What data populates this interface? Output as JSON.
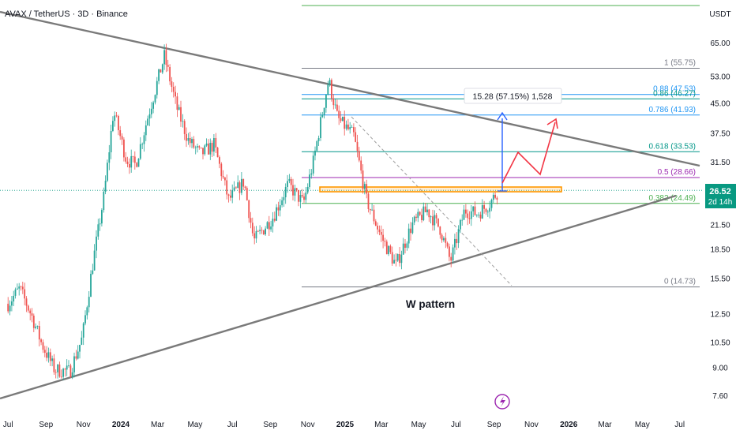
{
  "header": {
    "symbol_title": "AVAX / TetherUS · 3D · Binance",
    "currency": "USDT"
  },
  "colors": {
    "up": "#26a69a",
    "down": "#ef5350",
    "fib_green": "#4caf50",
    "fib_teal": "#009688",
    "fib_blue": "#2196f3",
    "fib_purple": "#9c27b0",
    "fib_gray": "#787b86",
    "orange_zone": "#ff9800",
    "trendline": "#787b86",
    "projection": "#f23645",
    "measure": "#2962ff",
    "price_tag": "#089981"
  },
  "chart_data": {
    "type": "candlestick",
    "price_scale": "log",
    "y_ticks": [
      "65.00",
      "53.00",
      "45.00",
      "37.50",
      "31.50",
      "26.52",
      "21.50",
      "18.50",
      "15.50",
      "12.50",
      "10.50",
      "9.00",
      "7.60"
    ],
    "x_ticks": [
      "Jul",
      "Sep",
      "Nov",
      "2024",
      "Mar",
      "May",
      "Jul",
      "Sep",
      "Nov",
      "2025",
      "Mar",
      "May",
      "Jul",
      "Sep",
      "Nov",
      "2026",
      "Mar",
      "May",
      "Jul"
    ],
    "bold_x_ticks": [
      "2024",
      "2025",
      "2026"
    ],
    "price_path": [
      [
        "2023-07-01",
        13.3
      ],
      [
        "2023-07-20",
        14.6
      ],
      [
        "2023-08-10",
        12.2
      ],
      [
        "2023-08-25",
        10.4
      ],
      [
        "2023-09-15",
        8.9
      ],
      [
        "2023-10-10",
        8.8
      ],
      [
        "2023-10-30",
        10.8
      ],
      [
        "2023-11-15",
        16.5
      ],
      [
        "2023-12-05",
        26.0
      ],
      [
        "2023-12-20",
        43.0
      ],
      [
        "2024-01-10",
        32.0
      ],
      [
        "2024-01-25",
        31.0
      ],
      [
        "2024-02-15",
        42.0
      ],
      [
        "2024-03-12",
        60.0
      ],
      [
        "2024-04-01",
        44.0
      ],
      [
        "2024-04-20",
        36.0
      ],
      [
        "2024-05-10",
        33.0
      ],
      [
        "2024-06-01",
        35.0
      ],
      [
        "2024-06-25",
        25.0
      ],
      [
        "2024-07-20",
        28.0
      ],
      [
        "2024-08-05",
        19.5
      ],
      [
        "2024-09-05",
        22.5
      ],
      [
        "2024-09-30",
        27.5
      ],
      [
        "2024-10-25",
        24.5
      ],
      [
        "2024-11-10",
        31.5
      ],
      [
        "2024-12-05",
        52.0
      ],
      [
        "2024-12-20",
        41.0
      ],
      [
        "2025-01-15",
        37.0
      ],
      [
        "2025-02-05",
        25.0
      ],
      [
        "2025-03-01",
        20.0
      ],
      [
        "2025-03-25",
        16.8
      ],
      [
        "2025-04-20",
        21.5
      ],
      [
        "2025-05-15",
        23.5
      ],
      [
        "2025-06-05",
        21.0
      ],
      [
        "2025-06-22",
        17.2
      ],
      [
        "2025-07-15",
        23.5
      ],
      [
        "2025-08-05",
        23.0
      ],
      [
        "2025-08-25",
        24.5
      ],
      [
        "2025-09-08",
        26.52
      ]
    ],
    "fib_levels": [
      {
        "ratio": "1",
        "price": 55.75,
        "label": "1 (55.75)",
        "color": "#787b86"
      },
      {
        "ratio": "0.88",
        "price": 47.53,
        "label": "0.88 (47.53)",
        "color": "#2196f3"
      },
      {
        "ratio": "0.86",
        "price": 46.27,
        "label": "0.86 (46.27)",
        "color": "#009688"
      },
      {
        "ratio": "0.786",
        "price": 41.93,
        "label": "0.786 (41.93)",
        "color": "#2196f3"
      },
      {
        "ratio": "0.618",
        "price": 33.53,
        "label": "0.618 (33.53)",
        "color": "#009688"
      },
      {
        "ratio": "0.5",
        "price": 28.66,
        "label": "0.5 (28.66)",
        "color": "#9c27b0"
      },
      {
        "ratio": "0.382",
        "price": 24.49,
        "label": "0.382 (24.49)",
        "color": "#4caf50"
      },
      {
        "ratio": "0",
        "price": 14.73,
        "label": "0 (14.73)",
        "color": "#787b86"
      }
    ],
    "current_price": {
      "value": "26.52",
      "countdown": "2d 14h"
    },
    "measure_label": "15.28 (57.15%) 1,528",
    "pattern_label": "W pattern",
    "resistance_zone": {
      "low": 26.3,
      "high": 27.2
    }
  }
}
